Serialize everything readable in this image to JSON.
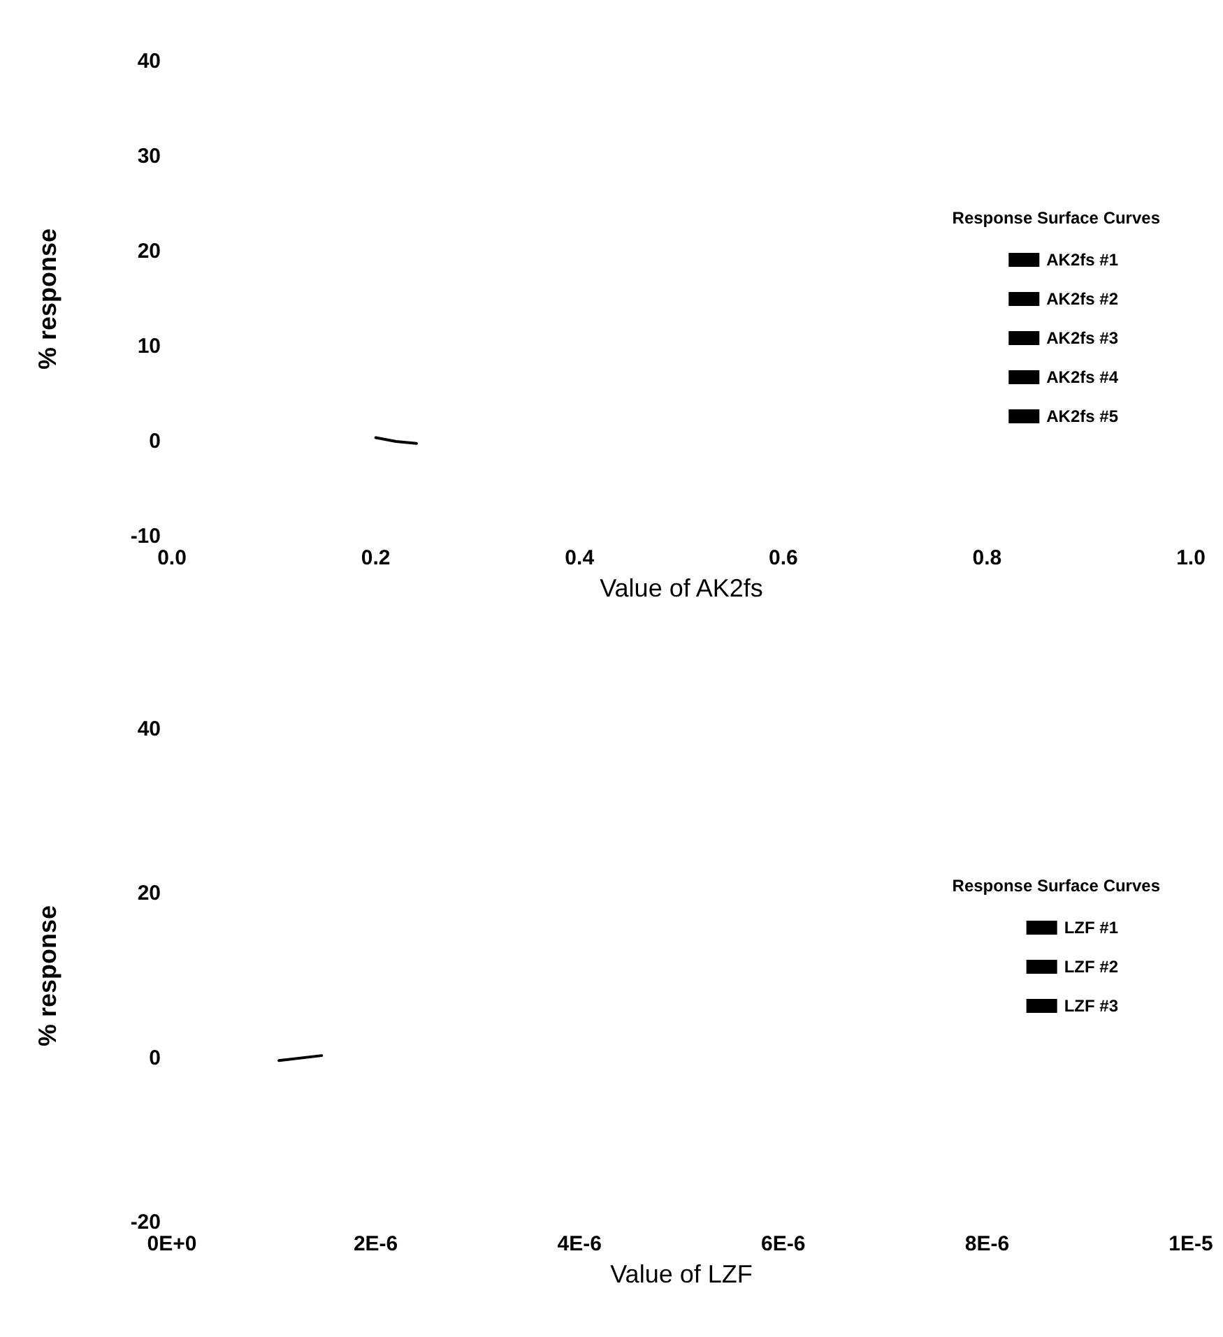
{
  "chart_data": [
    {
      "type": "line",
      "xlabel": "Value of AK2fs",
      "ylabel": "% response",
      "legend_title": "Response Surface Curves",
      "legend": "right",
      "grid": false,
      "marker": "none",
      "line_style": "solid",
      "xlim": [
        0,
        1
      ],
      "xticks": [
        {
          "value": 0,
          "label": "0.0"
        },
        {
          "value": 0.2,
          "label": "0.2"
        },
        {
          "value": 0.4,
          "label": "0.4"
        },
        {
          "value": 0.6,
          "label": "0.6"
        },
        {
          "value": 0.8,
          "label": "0.8"
        },
        {
          "value": 1,
          "label": "1.0"
        }
      ],
      "ylim": [
        -10,
        40
      ],
      "yticks": [
        -10,
        0,
        10,
        20,
        30,
        40
      ],
      "x": [
        0.2,
        0.22,
        0.24
      ],
      "series": [
        {
          "name": "AK2fs #1",
          "color": "#000000",
          "values": [
            0.4,
            0,
            -0.2
          ]
        },
        {
          "name": "AK2fs #2",
          "color": "#000000",
          "values": [
            null,
            null,
            null
          ]
        },
        {
          "name": "AK2fs #3",
          "color": "#000000",
          "values": [
            null,
            null,
            null
          ]
        },
        {
          "name": "AK2fs #4",
          "color": "#000000",
          "values": [
            null,
            null,
            null
          ]
        },
        {
          "name": "AK2fs #5",
          "color": "#000000",
          "values": [
            null,
            null,
            null
          ]
        }
      ]
    },
    {
      "type": "line",
      "xlabel": "Value of LZF",
      "ylabel": "% response",
      "legend_title": "Response Surface Curves",
      "legend": "right",
      "grid": false,
      "marker": "none",
      "line_style": "solid",
      "xlim": [
        0,
        1e-05
      ],
      "xticks": [
        {
          "value": 0,
          "label": "0E+0"
        },
        {
          "value": 2e-06,
          "label": "2E-6"
        },
        {
          "value": 4e-06,
          "label": "4E-6"
        },
        {
          "value": 6e-06,
          "label": "6E-6"
        },
        {
          "value": 8e-06,
          "label": "8E-6"
        },
        {
          "value": 1e-05,
          "label": "1E-5"
        }
      ],
      "ylim": [
        -20,
        40
      ],
      "yticks": [
        -20,
        0,
        20,
        40
      ],
      "x": [
        1.05e-06,
        1.47e-06
      ],
      "series": [
        {
          "name": "LZF #1",
          "color": "#000000",
          "values": [
            -0.3,
            0.3
          ]
        },
        {
          "name": "LZF #2",
          "color": "#000000",
          "values": [
            null,
            null
          ]
        },
        {
          "name": "LZF #3",
          "color": "#000000",
          "values": [
            null,
            null
          ]
        }
      ]
    }
  ]
}
